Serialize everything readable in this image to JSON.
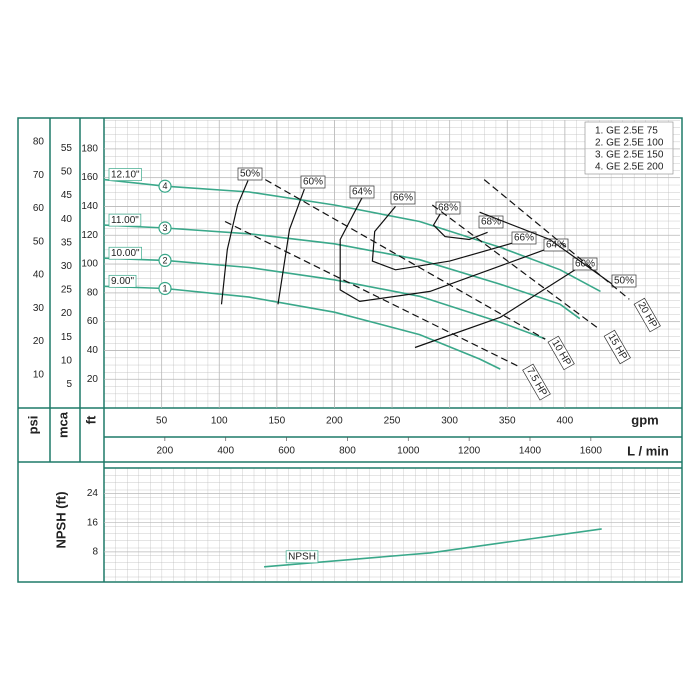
{
  "chart_data": [
    {
      "type": "line",
      "legend": [
        "1. GE 2.5E 75",
        "2. GE 2.5E 100",
        "3. GE 2.5E 150",
        "4. GE 2.5E 200"
      ],
      "xlabel": "gpm",
      "xlim": [
        0,
        500
      ],
      "xticks": [
        50,
        100,
        150,
        200,
        250,
        300,
        350,
        400
      ],
      "x2label": "L / min",
      "x2lim": [
        0,
        1893
      ],
      "x2ticks": [
        200,
        400,
        600,
        800,
        1000,
        1200,
        1400,
        1600
      ],
      "ylabel": "ft",
      "ylim": [
        0,
        200
      ],
      "yticks": [
        20,
        40,
        60,
        80,
        100,
        120,
        140,
        160,
        180
      ],
      "y2label": "psi",
      "y2lim": [
        0,
        86.6
      ],
      "y2ticks": [
        10,
        20,
        30,
        40,
        50,
        60,
        70,
        80
      ],
      "y3label": "mca",
      "y3lim": [
        0,
        61
      ],
      "y3ticks": [
        5,
        10,
        15,
        20,
        25,
        30,
        35,
        40,
        45,
        50,
        55
      ],
      "grid": true,
      "series": [
        {
          "name": "12.10\"",
          "marker": "4",
          "color": "#3aa88a",
          "style": "solid",
          "x": [
            0,
            53,
            126,
            200,
            274,
            344,
            396,
            431
          ],
          "values": [
            158.6,
            154,
            150,
            141,
            129.5,
            111.5,
            96,
            81
          ]
        },
        {
          "name": "11.00\"",
          "marker": "3",
          "color": "#3aa88a",
          "style": "solid",
          "x": [
            0,
            53,
            126,
            200,
            274,
            344,
            396,
            413
          ],
          "values": [
            127,
            125,
            121,
            114,
            103,
            86,
            72,
            62
          ]
        },
        {
          "name": "10.00\"",
          "marker": "2",
          "color": "#3aa88a",
          "style": "solid",
          "x": [
            0,
            53,
            126,
            200,
            274,
            344,
            383
          ],
          "values": [
            104,
            102.5,
            97.6,
            89,
            77.6,
            59.6,
            48
          ]
        },
        {
          "name": "9.00\"",
          "marker": "1",
          "color": "#3aa88a",
          "style": "solid",
          "x": [
            0,
            53,
            126,
            200,
            274,
            326,
            344
          ],
          "values": [
            84.5,
            83,
            77,
            66.5,
            51,
            34,
            27
          ]
        },
        {
          "name": "50%",
          "color": "#111111",
          "style": "solid",
          "x": [
            102,
            107,
            116,
            125
          ],
          "values": [
            72,
            110,
            141,
            158
          ]
        },
        {
          "name": "60%",
          "color": "#111111",
          "style": "solid",
          "x": [
            151,
            161,
            174
          ],
          "values": [
            72,
            124,
            152
          ]
        },
        {
          "name": "64%",
          "color": "#111111",
          "style": "solid",
          "x": [
            224,
            205,
            205,
            222,
            283,
            383
          ],
          "values": [
            146,
            117,
            82,
            74,
            81,
            110
          ]
        },
        {
          "name": "66%",
          "color": "#111111",
          "style": "solid",
          "x": [
            253,
            235,
            233,
            253,
            300,
            361
          ],
          "values": [
            140,
            122.6,
            102,
            96,
            102,
            116
          ]
        },
        {
          "name": "68%",
          "color": "#111111",
          "style": "solid",
          "x": [
            292,
            286,
            296,
            317,
            333
          ],
          "values": [
            135,
            127,
            119,
            117,
            122
          ]
        },
        {
          "name": "60%",
          "color": "#111111",
          "style": "solid",
          "x": [
            270,
            344,
            411
          ],
          "values": [
            42,
            63,
            97
          ]
        },
        {
          "name": "50%",
          "color": "#111111",
          "style": "solid",
          "x": [
            326,
            387,
            443
          ],
          "values": [
            136,
            117,
            85
          ]
        },
        {
          "name": "7.5 HP",
          "color": "#111111",
          "style": "dashed",
          "x": [
            105,
            361
          ],
          "values": [
            129.5,
            28.4
          ]
        },
        {
          "name": "10 HP",
          "color": "#111111",
          "style": "dashed",
          "x": [
            140,
            383
          ],
          "values": [
            158.6,
            47.8
          ]
        },
        {
          "name": "15 HP",
          "color": "#111111",
          "style": "dashed",
          "x": [
            285,
            430
          ],
          "values": [
            141,
            54.7
          ]
        },
        {
          "name": "20 HP",
          "color": "#111111",
          "style": "dashed",
          "x": [
            330,
            456
          ],
          "values": [
            158.6,
            75.5
          ]
        }
      ]
    },
    {
      "type": "line",
      "ylabel": "NPSH (ft)",
      "ylim": [
        0,
        31
      ],
      "yticks": [
        8,
        16,
        24
      ],
      "xlim": [
        0,
        500
      ],
      "grid": true,
      "series": [
        {
          "name": "NPSH",
          "color": "#3aa88a",
          "style": "solid",
          "x": [
            139,
            283,
            432
          ],
          "values": [
            3.9,
            7.7,
            14.3
          ]
        }
      ]
    }
  ]
}
